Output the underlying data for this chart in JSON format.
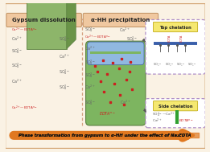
{
  "bg_color": "#f5ede0",
  "title_bottom": "Phase transformation from gypsum to α-HH under the effect of Na₂EDTA",
  "left_panel_title": "Gypsum dissolution",
  "right_panel_title": "α-HH precipitation",
  "top_chelation_title": "Top chelation",
  "side_chelation_title": "Side chelation",
  "gypsum_green": "#8db56a",
  "gypsum_blue": "#8ba9d4",
  "hh_green": "#7db560",
  "hh_blue": "#90b8e0",
  "arrow_color": "#e07820",
  "dot_color": "#cc2020",
  "dashed_box_color": "#b090c8",
  "top_box_bg": "#f5e870",
  "edta_color_red": "#cc2020",
  "edta_color_green": "#30a030",
  "ion_text_color": "#666666",
  "line_color_blue": "#3a5faa",
  "panel_divider_color": "#d4a080",
  "outer_border_color": "#d4a878",
  "outer_bg": "#faf2e4"
}
